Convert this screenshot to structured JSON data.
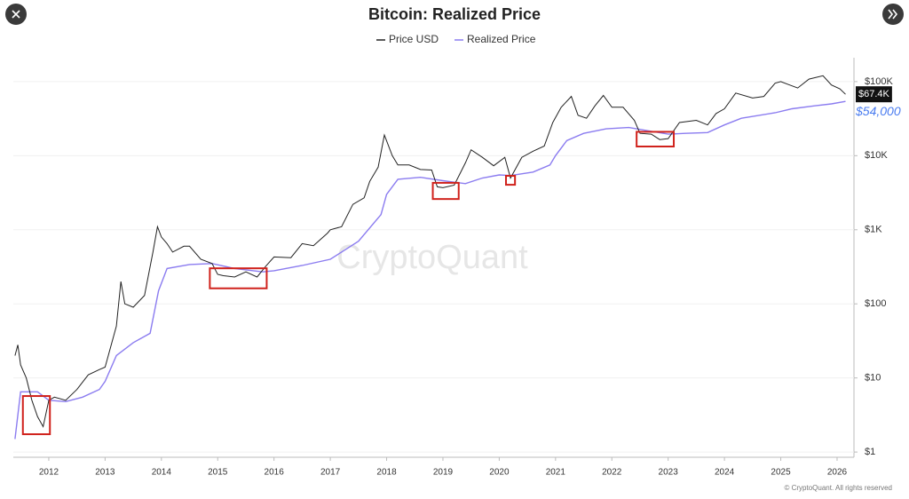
{
  "chart_data": {
    "type": "line",
    "title": "Bitcoin: Realized Price",
    "watermark": "CryptoQuant",
    "footer": "© CryptoQuant. All rights reserved",
    "log_scale": true,
    "grid": true,
    "xlim": [
      2011.37,
      2026.3
    ],
    "xticks": [
      2012,
      2013,
      2014,
      2015,
      2016,
      2017,
      2018,
      2019,
      2020,
      2021,
      2022,
      2023,
      2024,
      2025,
      2026
    ],
    "ylim": [
      0.85,
      210000
    ],
    "yticks": [
      {
        "value": 1,
        "label": "$1"
      },
      {
        "value": 10,
        "label": "$10"
      },
      {
        "value": 100,
        "label": "$100"
      },
      {
        "value": 1000,
        "label": "$1K"
      },
      {
        "value": 10000,
        "label": "$10K"
      },
      {
        "value": 100000,
        "label": "$100K"
      }
    ],
    "series": [
      {
        "name": "Price USD",
        "color": "#222222",
        "end_label": {
          "value": 67400,
          "label": "$67.4K"
        },
        "x": [
          2011.4,
          2011.45,
          2011.5,
          2011.6,
          2011.7,
          2011.8,
          2011.9,
          2012.0,
          2012.1,
          2012.3,
          2012.5,
          2012.7,
          2012.9,
          2013.0,
          2013.2,
          2013.28,
          2013.35,
          2013.5,
          2013.7,
          2013.85,
          2013.93,
          2014.0,
          2014.1,
          2014.2,
          2014.4,
          2014.5,
          2014.7,
          2014.9,
          2015.0,
          2015.1,
          2015.3,
          2015.5,
          2015.7,
          2015.85,
          2016.0,
          2016.3,
          2016.5,
          2016.7,
          2016.95,
          2017.0,
          2017.2,
          2017.4,
          2017.6,
          2017.7,
          2017.85,
          2017.96,
          2018.1,
          2018.2,
          2018.4,
          2018.6,
          2018.8,
          2018.9,
          2019.0,
          2019.2,
          2019.4,
          2019.5,
          2019.7,
          2019.9,
          2020.1,
          2020.2,
          2020.4,
          2020.6,
          2020.8,
          2020.95,
          2021.1,
          2021.28,
          2021.4,
          2021.55,
          2021.7,
          2021.85,
          2022.0,
          2022.2,
          2022.4,
          2022.5,
          2022.7,
          2022.85,
          2023.0,
          2023.2,
          2023.5,
          2023.7,
          2023.85,
          2024.0,
          2024.2,
          2024.5,
          2024.7,
          2024.9,
          2025.0,
          2025.3,
          2025.5,
          2025.75,
          2025.9,
          2026.05,
          2026.15
        ],
        "values": [
          20,
          28,
          15,
          10,
          5,
          3,
          2.2,
          5,
          5.5,
          5,
          7,
          11,
          13,
          14,
          50,
          200,
          100,
          90,
          130,
          500,
          1100,
          800,
          650,
          500,
          600,
          600,
          400,
          350,
          250,
          240,
          230,
          270,
          230,
          320,
          430,
          420,
          650,
          610,
          900,
          1000,
          1100,
          2200,
          2700,
          4500,
          7000,
          19000,
          10000,
          7500,
          7500,
          6500,
          6400,
          3800,
          3700,
          4000,
          8000,
          12000,
          9500,
          7300,
          9500,
          5000,
          9500,
          11500,
          13500,
          28000,
          45000,
          63000,
          35000,
          32000,
          47000,
          65000,
          45000,
          45000,
          30000,
          20000,
          19500,
          16500,
          17000,
          28000,
          30000,
          26000,
          37000,
          43000,
          70000,
          60000,
          63000,
          95000,
          100000,
          82000,
          108000,
          120000,
          90000,
          80000,
          67400
        ]
      },
      {
        "name": "Realized Price",
        "color": "#8b7cf0",
        "end_label": {
          "value": 54000,
          "label": "$54,000"
        },
        "x": [
          2011.4,
          2011.5,
          2011.8,
          2012.0,
          2012.3,
          2012.6,
          2012.9,
          2013.0,
          2013.2,
          2013.5,
          2013.8,
          2013.95,
          2014.1,
          2014.5,
          2014.9,
          2015.3,
          2015.8,
          2016.0,
          2016.5,
          2017.0,
          2017.5,
          2017.9,
          2018.0,
          2018.2,
          2018.6,
          2019.0,
          2019.4,
          2019.7,
          2020.0,
          2020.2,
          2020.6,
          2020.9,
          2021.0,
          2021.2,
          2021.5,
          2021.9,
          2022.3,
          2022.6,
          2023.0,
          2023.3,
          2023.7,
          2024.0,
          2024.3,
          2024.9,
          2025.2,
          2025.6,
          2025.9,
          2026.15
        ],
        "values": [
          1.5,
          6.5,
          6.5,
          5,
          4.8,
          5.5,
          7,
          9,
          20,
          30,
          40,
          150,
          300,
          340,
          350,
          300,
          270,
          280,
          330,
          400,
          700,
          1600,
          3000,
          4800,
          5100,
          4600,
          4200,
          5000,
          5500,
          5400,
          6000,
          7500,
          10000,
          16000,
          20000,
          23000,
          24000,
          22000,
          19500,
          20000,
          20500,
          26000,
          32000,
          38000,
          43000,
          47000,
          50000,
          54000
        ]
      }
    ],
    "highlights": [
      {
        "x": [
          2011.54,
          2012.02
        ],
        "y": [
          1.74,
          5.7
        ]
      },
      {
        "x": [
          2014.86,
          2015.87
        ],
        "y": [
          162,
          302
        ]
      },
      {
        "x": [
          2018.82,
          2019.28
        ],
        "y": [
          2600,
          4300
        ]
      },
      {
        "x": [
          2020.12,
          2020.28
        ],
        "y": [
          4050,
          5350
        ]
      },
      {
        "x": [
          2022.44,
          2023.1
        ],
        "y": [
          13300,
          21000
        ]
      }
    ]
  }
}
